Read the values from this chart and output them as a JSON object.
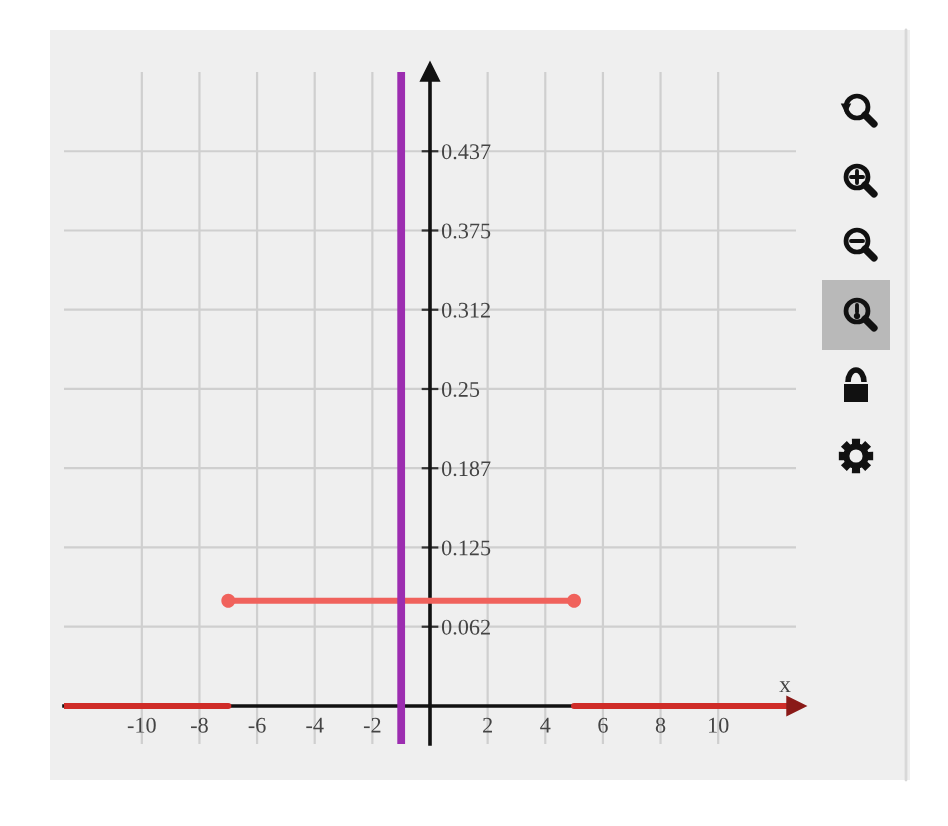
{
  "chart_data": {
    "type": "line",
    "xlabel": "x",
    "xlim": [
      -12.7,
      12.7
    ],
    "ylim": [
      -0.03,
      0.5
    ],
    "xticks": [
      -10,
      -8,
      -6,
      -4,
      -2,
      2,
      4,
      6,
      8,
      10
    ],
    "yticks": [
      {
        "value": 0.0625,
        "label": "0.062"
      },
      0.125,
      {
        "value": 0.1875,
        "label": "0.187"
      },
      0.25,
      {
        "value": 0.3125,
        "label": "0.312"
      },
      0.375,
      {
        "value": 0.4375,
        "label": "0.437"
      }
    ],
    "grid": true,
    "series": [
      {
        "color": "#f0625c",
        "x": [
          -7,
          5
        ],
        "values": [
          0.083,
          0.083
        ],
        "marker": "circle"
      },
      {
        "color": "#cf2c28",
        "x": [
          -12.7,
          -7
        ],
        "values": [
          0,
          0
        ]
      },
      {
        "color": "#cf2c28",
        "x": [
          5,
          12.7
        ],
        "values": [
          0,
          0
        ]
      }
    ],
    "ref_lines": [
      {
        "axis": "x",
        "value": -1,
        "color": "#9c2db0"
      }
    ]
  }
}
